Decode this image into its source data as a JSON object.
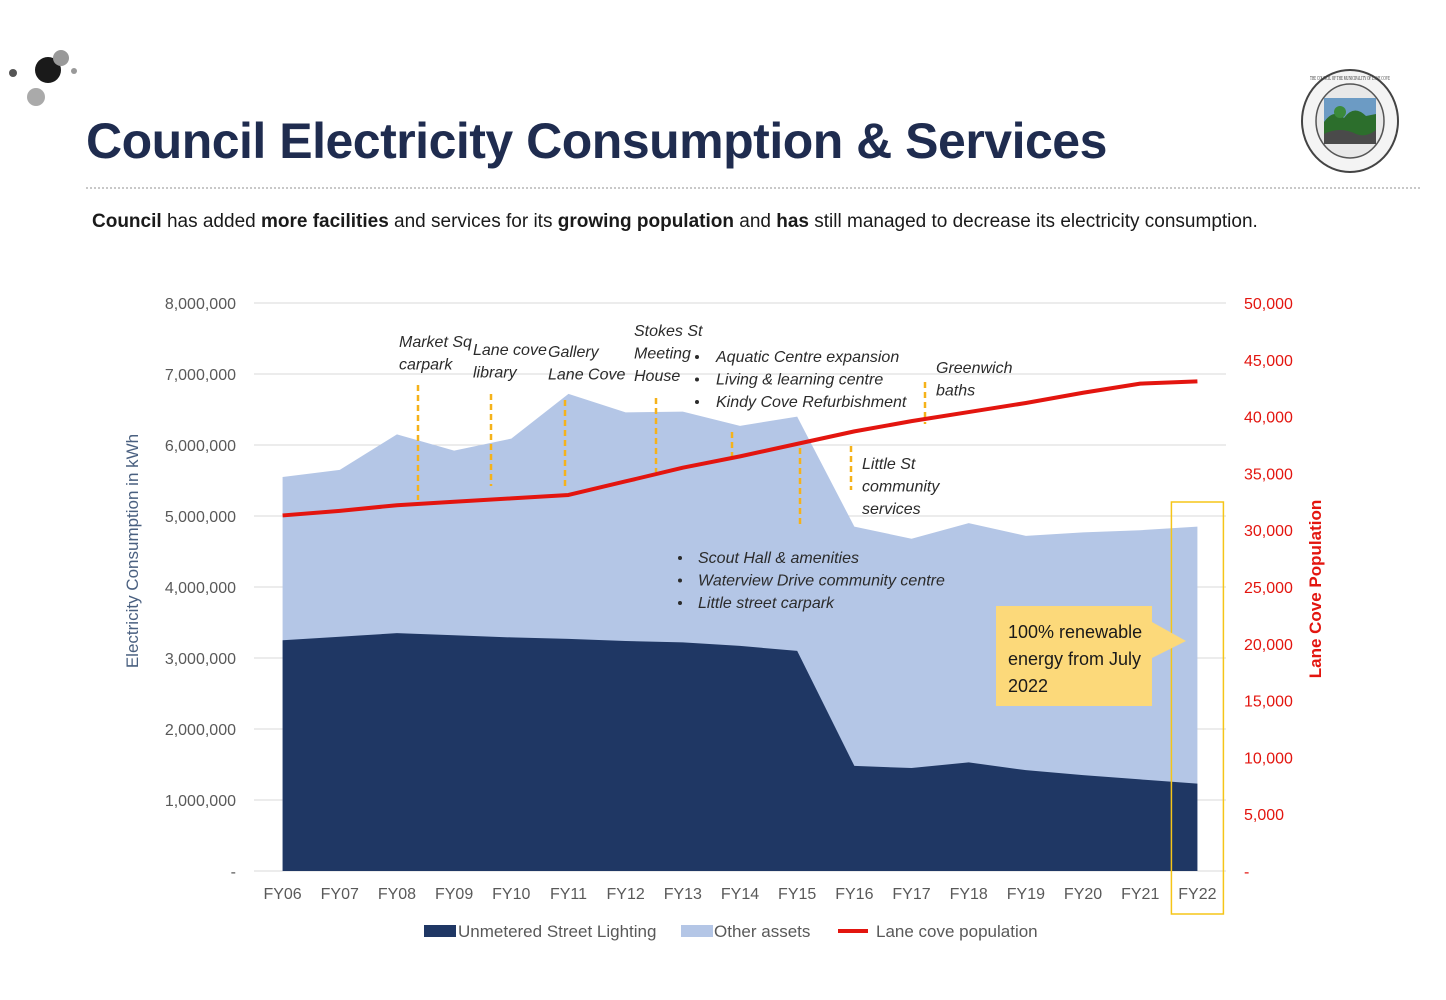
{
  "header": {
    "title": "Council Electricity Consumption & Services",
    "subtitle_parts": [
      {
        "text": "Council ",
        "bold": true
      },
      {
        "text": "has added ",
        "bold": false
      },
      {
        "text": "more facilities ",
        "bold": true
      },
      {
        "text": "and services for its ",
        "bold": false
      },
      {
        "text": "growing population ",
        "bold": true
      },
      {
        "text": "and ",
        "bold": false
      },
      {
        "text": "has ",
        "bold": true
      },
      {
        "text": "still managed to decrease its electricity consumption.",
        "bold": false
      }
    ]
  },
  "logo": {
    "icon": "lane-cove-council-seal-icon",
    "text": "THE COUNCIL OF THE MUNICIPALITY OF LANE COVE"
  },
  "chart_data": {
    "type": "area",
    "categories": [
      "FY06",
      "FY07",
      "FY08",
      "FY09",
      "FY10",
      "FY11",
      "FY12",
      "FY13",
      "FY14",
      "FY15",
      "FY16",
      "FY17",
      "FY18",
      "FY19",
      "FY20",
      "FY21",
      "FY22"
    ],
    "ylabel": "Electricity Consumption in kWh",
    "y2label": "Lane Cove Population",
    "ylim": [
      0,
      8000000
    ],
    "y2lim": [
      0,
      50000
    ],
    "yticks": [
      "-",
      "1,000,000",
      "2,000,000",
      "3,000,000",
      "4,000,000",
      "5,000,000",
      "6,000,000",
      "7,000,000",
      "8,000,000"
    ],
    "y2ticks": [
      "-",
      "5,000",
      "10,000",
      "15,000",
      "20,000",
      "25,000",
      "30,000",
      "35,000",
      "40,000",
      "45,000",
      "50,000"
    ],
    "grid": true,
    "legend_position": "bottom",
    "series": [
      {
        "name": "Unmetered Street Lighting",
        "type": "area",
        "color": "#1f3764",
        "values": [
          3250000,
          3300000,
          3350000,
          3320000,
          3290000,
          3270000,
          3240000,
          3220000,
          3170000,
          3100000,
          1480000,
          1450000,
          1530000,
          1420000,
          1350000,
          1290000,
          1230000
        ]
      },
      {
        "name": "Other assets",
        "type": "area",
        "color": "#b4c6e6",
        "values": [
          2300000,
          2350000,
          2800000,
          2600000,
          2800000,
          3450000,
          3220000,
          3250000,
          3100000,
          3300000,
          3370000,
          3230000,
          3370000,
          3300000,
          3420000,
          3510000,
          3620000
        ]
      },
      {
        "name": "Lane cove population",
        "type": "line",
        "axis": "right",
        "color": "#e3150f",
        "values": [
          31300,
          31700,
          32200,
          32500,
          32800,
          33100,
          34300,
          35500,
          36500,
          37600,
          38700,
          39600,
          40400,
          41200,
          42100,
          42900,
          43100
        ]
      }
    ],
    "annotations": [
      {
        "lines": [
          "Market Sq",
          "carpark"
        ],
        "category": "FY08"
      },
      {
        "lines": [
          "Lane cove",
          "library"
        ],
        "category": "FY10"
      },
      {
        "lines": [
          "Gallery",
          "Lane Cove"
        ],
        "category": "FY11"
      },
      {
        "lines": [
          "Stokes St",
          "Meeting",
          "House"
        ],
        "category": "FY13"
      },
      {
        "lines": [
          "Aquatic Centre expansion",
          "Living & learning centre",
          "Kindy Cove Refurbishment"
        ],
        "category": "FY14",
        "bulleted": true
      },
      {
        "lines": [
          "Scout Hall & amenities",
          "Waterview Drive community centre",
          "Little street carpark"
        ],
        "category": "FY15",
        "bulleted": true
      },
      {
        "lines": [
          "Little St",
          "community",
          "services"
        ],
        "category": "FY16"
      },
      {
        "lines": [
          "Greenwich",
          "baths"
        ],
        "category": "FY17"
      }
    ],
    "callout": {
      "text": "100% renewable energy from July 2022",
      "lines": [
        "100% renewable",
        "energy from July",
        "2022"
      ],
      "target": "FY22",
      "color": "#fcd97a"
    },
    "highlight": {
      "category": "FY22",
      "color": "#f5c518"
    }
  }
}
